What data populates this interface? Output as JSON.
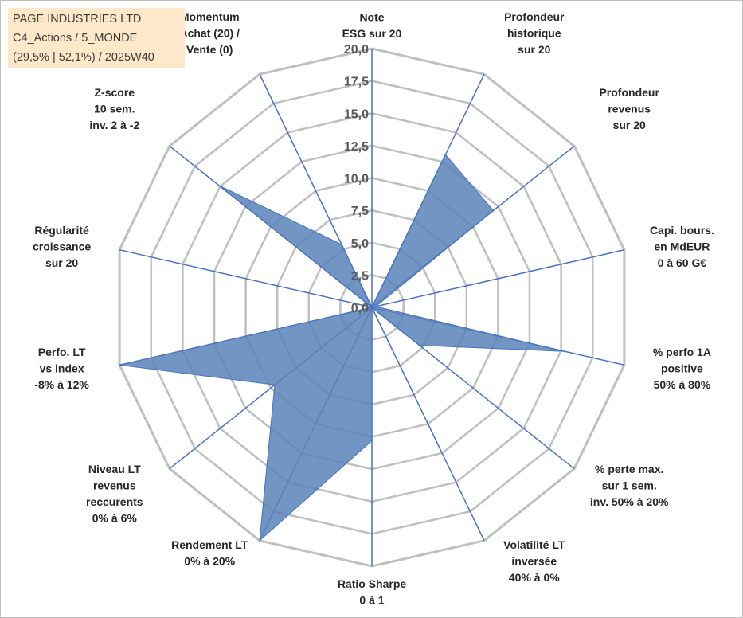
{
  "info": {
    "company": "PAGE INDUSTRIES LTD",
    "category": "C4_Actions / 5_MONDE",
    "stats": "(29,5% | 52,1%) / 2025W40"
  },
  "colors": {
    "fill": "#5b82b8",
    "axis": "#4472c4",
    "grid": "#bfbfbf",
    "info_bg": "#fde9c9"
  },
  "chart_data": {
    "type": "radar",
    "title": "",
    "rmin": 0,
    "rmax": 20,
    "tick_step": 2.5,
    "tick_labels": [
      "0,0",
      "2,5",
      "5,0",
      "7,5",
      "10,0",
      "12,5",
      "15,0",
      "17,5",
      "20,0"
    ],
    "categories": [
      [
        "Note",
        "ESG sur 20"
      ],
      [
        "Profondeur",
        "historique",
        "sur 20"
      ],
      [
        "Profondeur",
        "revenus",
        "sur 20"
      ],
      [
        "Capi. bours.",
        "en MdEUR",
        "0 à 60 G€"
      ],
      [
        "% perfo 1A",
        "positive",
        "50% à 80%"
      ],
      [
        "% perte max.",
        "sur 1 sem.",
        "inv. 50% à 20%"
      ],
      [
        "Volatilité LT",
        "inversée",
        "40% à 0%"
      ],
      [
        "Ratio Sharpe",
        "0 à 1"
      ],
      [
        "Rendement LT",
        "0% à 20%"
      ],
      [
        "Niveau LT",
        "revenus",
        "reccurents",
        "0% à 6%"
      ],
      [
        "Perfo. LT",
        "vs index",
        "-8% à 12%"
      ],
      [
        "Régularité",
        "croissance",
        "sur 20"
      ],
      [
        "Z-score",
        "10 sem.",
        "inv. 2 à -2"
      ],
      [
        "Momentum",
        "Achat (20) /",
        "Vente (0)"
      ]
    ],
    "series": [
      {
        "name": "PAGE INDUSTRIES LTD",
        "values": [
          0,
          13.1,
          12.0,
          0.3,
          15.3,
          4.7,
          0,
          10.3,
          20.0,
          9.6,
          20.0,
          0,
          15.1,
          5.4
        ]
      }
    ]
  }
}
